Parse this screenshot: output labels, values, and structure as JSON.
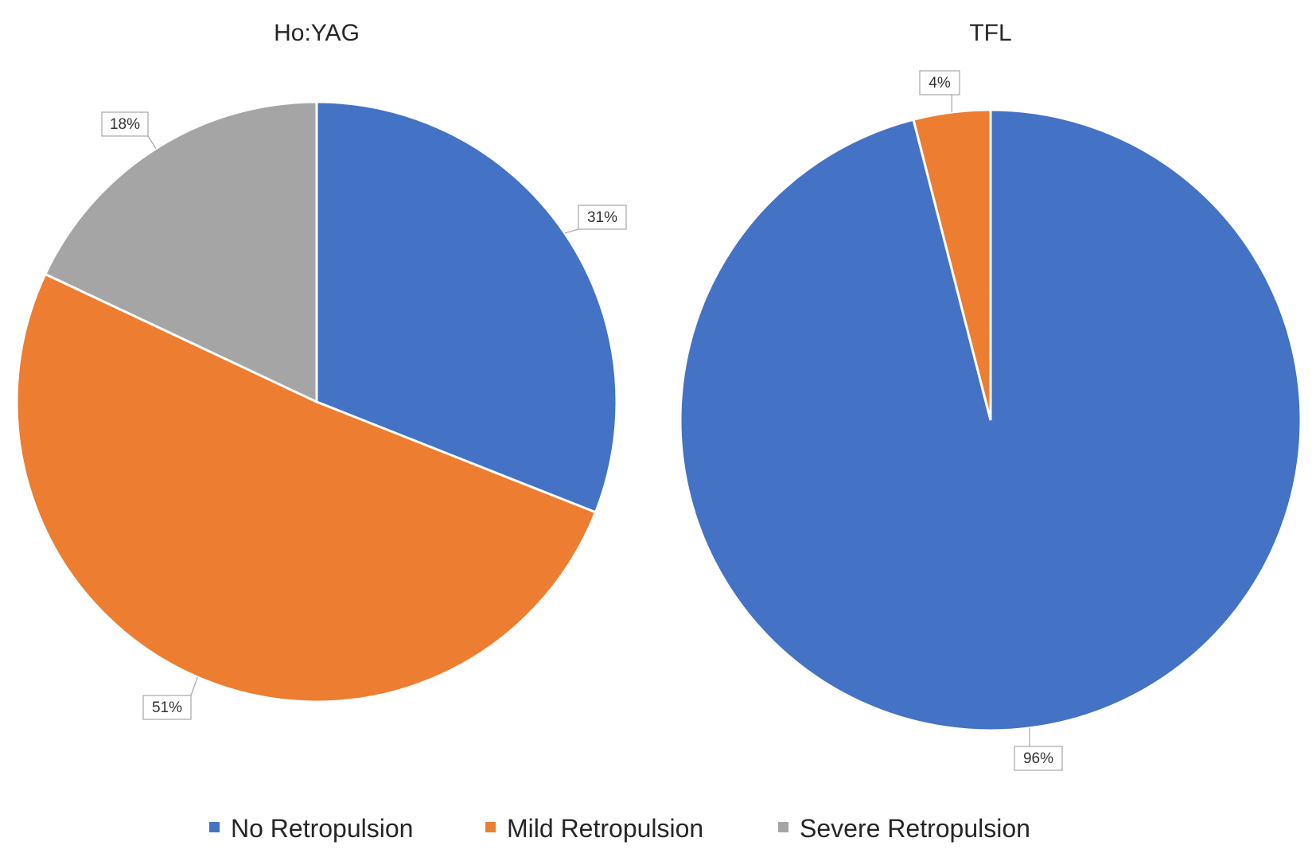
{
  "chart_data": [
    {
      "type": "pie",
      "title": "Ho:YAG",
      "categories": [
        "No Retropulsion",
        "Mild Retropulsion",
        "Severe Retropulsion"
      ],
      "values": [
        31,
        51,
        18
      ],
      "labels": [
        "31%",
        "51%",
        "18%"
      ],
      "start_angle_deg": 0,
      "direction": "clockwise"
    },
    {
      "type": "pie",
      "title": "TFL",
      "categories": [
        "No Retropulsion",
        "Mild Retropulsion"
      ],
      "values": [
        96,
        4
      ],
      "labels": [
        "96%",
        "4%"
      ],
      "start_angle_deg": 0,
      "direction": "clockwise"
    }
  ],
  "legend": {
    "placement": "bottom",
    "items": [
      {
        "label": "No Retropulsion",
        "color": "#4472C4"
      },
      {
        "label": "Mild Retropulsion",
        "color": "#ED7D31"
      },
      {
        "label": "Severe Retropulsion",
        "color": "#A5A5A5"
      }
    ]
  },
  "colors": {
    "No Retropulsion": "#4472C4",
    "Mild Retropulsion": "#ED7D31",
    "Severe Retropulsion": "#A5A5A5"
  }
}
